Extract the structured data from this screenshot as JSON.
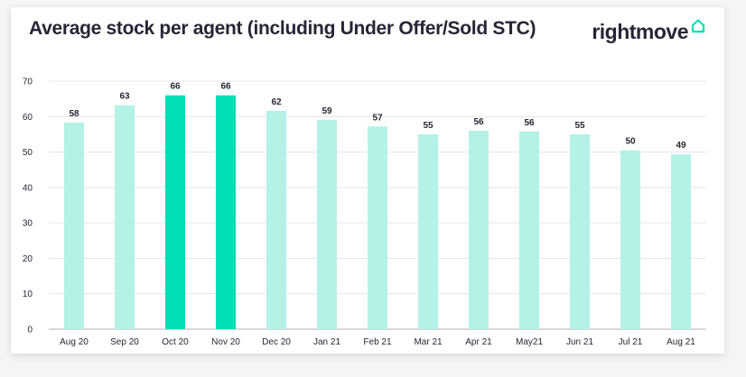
{
  "colors": {
    "bar": "#b4f2e7",
    "highlight": "#00deb6",
    "brand_accent": "#00deb6",
    "text": "#262637"
  },
  "brand": {
    "name": "rightmove",
    "icon": "house-outline-icon"
  },
  "chart_data": {
    "type": "bar",
    "title": "Average stock per agent (including Under Offer/Sold STC)",
    "categories": [
      "Aug 20",
      "Sep 20",
      "Oct 20",
      "Nov 20",
      "Dec 20",
      "Jan 21",
      "Feb 21",
      "Mar 21",
      "Apr 21",
      "May21",
      "Jun 21",
      "Jul 21",
      "Aug 21"
    ],
    "values": [
      58,
      63,
      66,
      66,
      62,
      59,
      57,
      55,
      56,
      56,
      55,
      50,
      49
    ],
    "plotted_values": [
      58.3,
      63.2,
      66.0,
      66.0,
      61.6,
      59.1,
      57.2,
      55.0,
      56.0,
      55.8,
      55.0,
      50.5,
      49.4
    ],
    "highlighted_categories": [
      "Oct 20",
      "Nov 20"
    ],
    "ylim": [
      0,
      70
    ],
    "yticks": [
      0,
      10,
      20,
      30,
      40,
      50,
      60,
      70
    ],
    "grid": true,
    "legend": "none",
    "xlabel": "",
    "ylabel": ""
  }
}
